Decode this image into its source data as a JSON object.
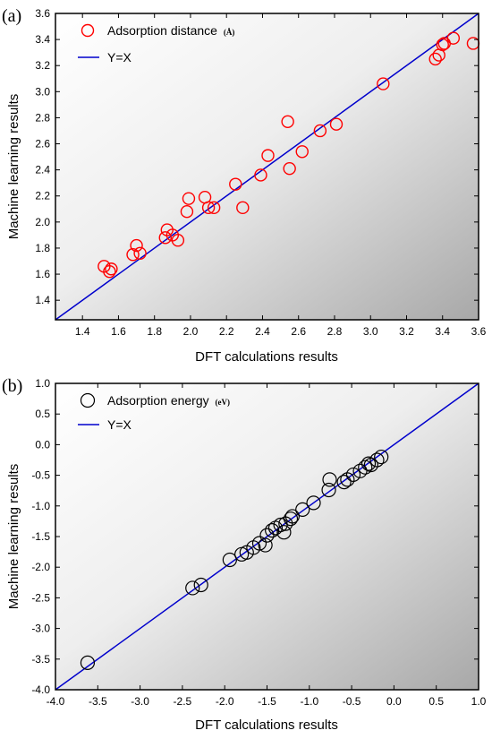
{
  "chart_data": [
    {
      "type": "scatter",
      "panel_label": "(a)",
      "xlabel": "DFT calculations results",
      "ylabel": "Machine learning results",
      "xlim": [
        1.25,
        3.6
      ],
      "ylim": [
        1.25,
        3.6
      ],
      "xticks": [
        "1.4",
        "1.6",
        "1.8",
        "2.0",
        "2.2",
        "2.4",
        "2.6",
        "2.8",
        "3.0",
        "3.2",
        "3.4",
        "3.6"
      ],
      "yticks": [
        "1.4",
        "1.6",
        "1.8",
        "2.0",
        "2.2",
        "2.4",
        "2.6",
        "2.8",
        "3.0",
        "3.2",
        "3.4",
        "3.6"
      ],
      "legend_position": "top-left",
      "series": [
        {
          "name": "Adsorption distance",
          "unit": "(Å)",
          "marker": "open-circle",
          "color": "#ff0000",
          "points": [
            [
              1.52,
              1.66
            ],
            [
              1.55,
              1.62
            ],
            [
              1.56,
              1.64
            ],
            [
              1.68,
              1.75
            ],
            [
              1.7,
              1.82
            ],
            [
              1.72,
              1.76
            ],
            [
              1.86,
              1.88
            ],
            [
              1.87,
              1.94
            ],
            [
              1.9,
              1.9
            ],
            [
              1.93,
              1.86
            ],
            [
              1.98,
              2.08
            ],
            [
              1.99,
              2.18
            ],
            [
              2.08,
              2.19
            ],
            [
              2.1,
              2.11
            ],
            [
              2.13,
              2.11
            ],
            [
              2.25,
              2.29
            ],
            [
              2.29,
              2.11
            ],
            [
              2.39,
              2.36
            ],
            [
              2.43,
              2.51
            ],
            [
              2.54,
              2.77
            ],
            [
              2.55,
              2.41
            ],
            [
              2.62,
              2.54
            ],
            [
              2.72,
              2.7
            ],
            [
              2.81,
              2.75
            ],
            [
              3.07,
              3.06
            ],
            [
              3.36,
              3.25
            ],
            [
              3.38,
              3.28
            ],
            [
              3.4,
              3.36
            ],
            [
              3.41,
              3.37
            ],
            [
              3.46,
              3.41
            ],
            [
              3.57,
              3.37
            ]
          ]
        },
        {
          "name": "Y=X",
          "type": "line",
          "color": "#0000cc",
          "points": [
            [
              1.25,
              1.25
            ],
            [
              3.6,
              3.6
            ]
          ]
        }
      ],
      "background": "gradient-white-to-gray"
    },
    {
      "type": "scatter",
      "panel_label": "(b)",
      "xlabel": "DFT calculations results",
      "ylabel": "Machine learning results",
      "xlim": [
        -4.0,
        1.0
      ],
      "ylim": [
        -4.0,
        1.0
      ],
      "xticks": [
        "-4.0",
        "-3.5",
        "-3.0",
        "-2.5",
        "-2.0",
        "-1.5",
        "-1.0",
        "-0.5",
        "0.0",
        "0.5",
        "1.0"
      ],
      "yticks": [
        "-4.0",
        "-3.5",
        "-3.0",
        "-2.5",
        "-2.0",
        "-1.5",
        "-1.0",
        "-0.5",
        "0.0",
        "0.5",
        "1.0"
      ],
      "legend_position": "top-left",
      "series": [
        {
          "name": "Adsorption energy",
          "unit": "(eV)",
          "marker": "open-circle",
          "color": "#000000",
          "points": [
            [
              -3.62,
              -3.56
            ],
            [
              -2.38,
              -2.34
            ],
            [
              -2.28,
              -2.29
            ],
            [
              -1.94,
              -1.88
            ],
            [
              -1.8,
              -1.79
            ],
            [
              -1.74,
              -1.76
            ],
            [
              -1.66,
              -1.68
            ],
            [
              -1.59,
              -1.61
            ],
            [
              -1.52,
              -1.64
            ],
            [
              -1.5,
              -1.48
            ],
            [
              -1.44,
              -1.4
            ],
            [
              -1.4,
              -1.36
            ],
            [
              -1.34,
              -1.31
            ],
            [
              -1.3,
              -1.43
            ],
            [
              -1.28,
              -1.29
            ],
            [
              -1.22,
              -1.21
            ],
            [
              -1.2,
              -1.17
            ],
            [
              -1.08,
              -1.06
            ],
            [
              -0.95,
              -0.95
            ],
            [
              -0.77,
              -0.74
            ],
            [
              -0.76,
              -0.57
            ],
            [
              -0.59,
              -0.61
            ],
            [
              -0.55,
              -0.57
            ],
            [
              -0.48,
              -0.49
            ],
            [
              -0.4,
              -0.43
            ],
            [
              -0.34,
              -0.37
            ],
            [
              -0.3,
              -0.31
            ],
            [
              -0.27,
              -0.33
            ],
            [
              -0.2,
              -0.25
            ],
            [
              -0.15,
              -0.2
            ]
          ]
        },
        {
          "name": "Y=X",
          "type": "line",
          "color": "#0000cc",
          "points": [
            [
              -4.0,
              -4.0
            ],
            [
              1.0,
              1.0
            ]
          ]
        }
      ],
      "background": "gradient-white-to-gray"
    }
  ]
}
